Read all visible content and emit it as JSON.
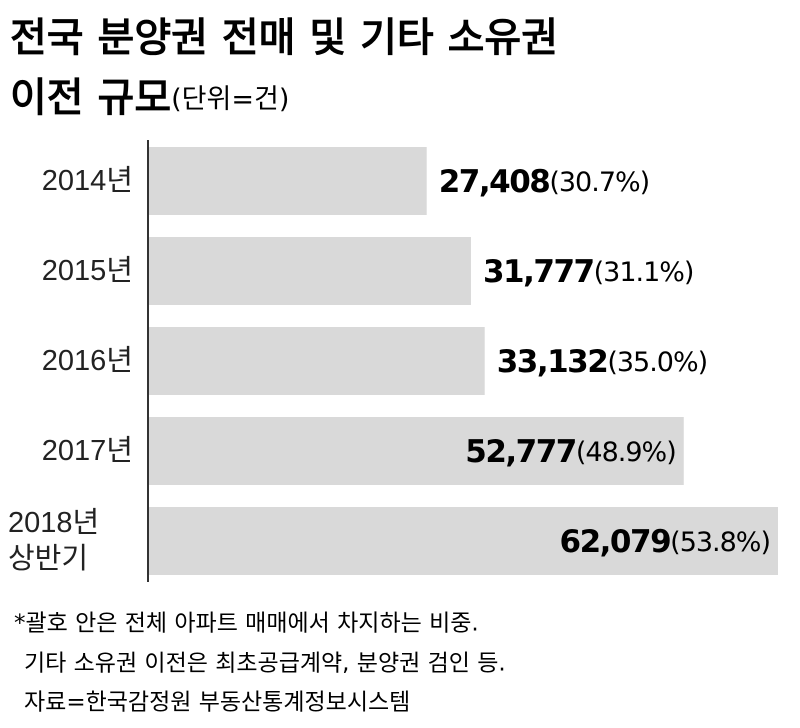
{
  "chart_data": {
    "type": "bar",
    "orientation": "horizontal",
    "title": [
      "전국 분양권 전매 및 기타 소유권",
      "이전 규모"
    ],
    "unit": "(단위=건)",
    "categories": [
      "2014년",
      "2015년",
      "2016년",
      "2017년",
      "2018년 상반기"
    ],
    "values": [
      27408,
      31777,
      33132,
      52777,
      62079
    ],
    "value_labels": [
      "27,408",
      "31,777",
      "33,132",
      "52,777",
      "62,079"
    ],
    "shares": [
      30.7,
      31.1,
      35.0,
      48.9,
      53.8
    ],
    "share_labels": [
      "(30.7%)",
      "(31.1%)",
      "(35.0%)",
      "(48.9%)",
      "(53.8%)"
    ],
    "color": "#d9d9d9",
    "notes": [
      "*괄호 안은 전체 아파트 매매에서 차지하는 비중.",
      "기타 소유권 이전은 최초공급계약, 분양권 검인 등.",
      "자료=한국감정원 부동산통계정보시스템"
    ]
  }
}
